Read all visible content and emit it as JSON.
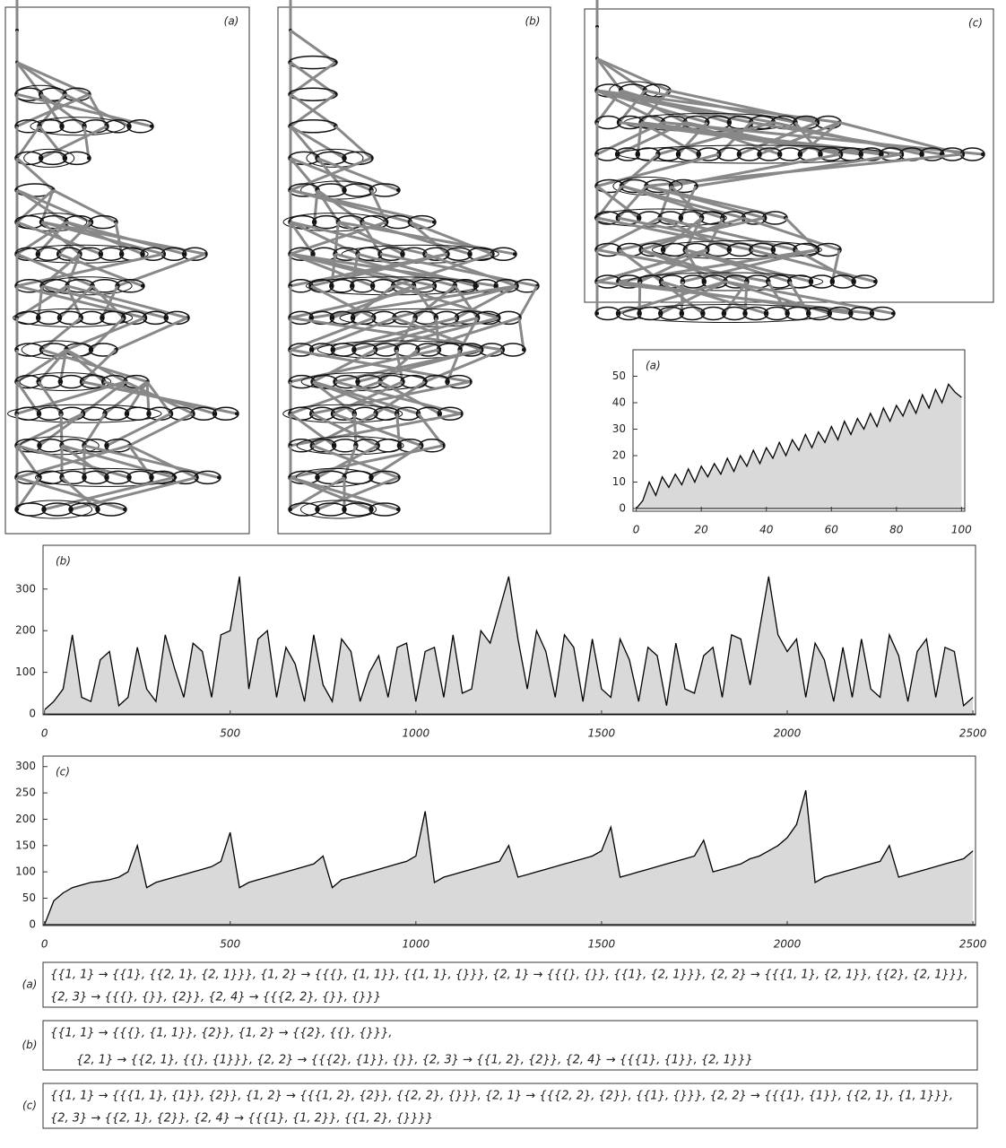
{
  "diagrams": [
    "(a)",
    "(b)",
    "(c)"
  ],
  "chart_data": [
    {
      "type": "area",
      "title": "(a)",
      "x": [
        0,
        2,
        4,
        6,
        8,
        10,
        12,
        14,
        16,
        18,
        20,
        22,
        24,
        26,
        28,
        30,
        32,
        34,
        36,
        38,
        40,
        42,
        44,
        46,
        48,
        50,
        52,
        54,
        56,
        58,
        60,
        62,
        64,
        66,
        68,
        70,
        72,
        74,
        76,
        78,
        80,
        82,
        84,
        86,
        88,
        90,
        92,
        94,
        96,
        98,
        100
      ],
      "values": [
        0,
        3,
        10,
        5,
        12,
        8,
        13,
        9,
        15,
        10,
        16,
        12,
        17,
        13,
        19,
        14,
        20,
        16,
        22,
        17,
        23,
        19,
        25,
        20,
        26,
        22,
        28,
        23,
        29,
        25,
        31,
        26,
        33,
        28,
        34,
        30,
        36,
        31,
        38,
        33,
        39,
        35,
        41,
        36,
        43,
        38,
        45,
        40,
        47,
        44,
        42
      ],
      "xlim": [
        -1,
        101
      ],
      "ylim": [
        -1,
        60
      ],
      "xticks": [
        0,
        20,
        40,
        60,
        80,
        100
      ],
      "yticks": [
        0,
        10,
        20,
        30,
        40,
        50
      ],
      "color": "#d9d9d9"
    },
    {
      "type": "area",
      "title": "(b)",
      "x": [
        0,
        25,
        50,
        75,
        100,
        125,
        150,
        175,
        200,
        225,
        250,
        275,
        300,
        325,
        350,
        375,
        400,
        425,
        450,
        475,
        500,
        525,
        550,
        575,
        600,
        625,
        650,
        675,
        700,
        725,
        750,
        775,
        800,
        825,
        850,
        875,
        900,
        925,
        950,
        975,
        1000,
        1025,
        1050,
        1075,
        1100,
        1125,
        1150,
        1175,
        1200,
        1225,
        1250,
        1275,
        1300,
        1325,
        1350,
        1375,
        1400,
        1425,
        1450,
        1475,
        1500,
        1525,
        1550,
        1575,
        1600,
        1625,
        1650,
        1675,
        1700,
        1725,
        1750,
        1775,
        1800,
        1825,
        1850,
        1875,
        1900,
        1925,
        1950,
        1975,
        2000,
        2025,
        2050,
        2075,
        2100,
        2125,
        2150,
        2175,
        2200,
        2225,
        2250,
        2275,
        2300,
        2325,
        2350,
        2375,
        2400,
        2425,
        2450,
        2475,
        2500
      ],
      "values": [
        10,
        30,
        60,
        190,
        40,
        30,
        130,
        150,
        20,
        40,
        160,
        60,
        30,
        190,
        110,
        40,
        170,
        150,
        40,
        190,
        200,
        330,
        60,
        180,
        200,
        40,
        160,
        120,
        30,
        190,
        70,
        30,
        180,
        150,
        30,
        100,
        140,
        40,
        160,
        170,
        30,
        150,
        160,
        40,
        190,
        50,
        60,
        200,
        170,
        250,
        330,
        180,
        60,
        200,
        150,
        40,
        190,
        160,
        30,
        180,
        60,
        40,
        180,
        130,
        30,
        160,
        140,
        20,
        170,
        60,
        50,
        140,
        160,
        40,
        190,
        180,
        70,
        200,
        330,
        190,
        150,
        180,
        40,
        170,
        130,
        30,
        160,
        40,
        180,
        60,
        40,
        190,
        140,
        30,
        150,
        180,
        40,
        160,
        150,
        20,
        40
      ],
      "xlim": [
        -4,
        2507
      ],
      "ylim": [
        -2,
        405
      ],
      "xticks": [
        0,
        500,
        1000,
        1500,
        2000,
        2500
      ],
      "yticks": [
        0,
        100,
        200,
        300
      ],
      "color": "#d9d9d9"
    },
    {
      "type": "area",
      "title": "(c)",
      "x": [
        0,
        25,
        50,
        75,
        100,
        125,
        150,
        175,
        200,
        225,
        250,
        275,
        300,
        325,
        350,
        375,
        400,
        425,
        450,
        475,
        500,
        525,
        550,
        575,
        600,
        625,
        650,
        675,
        700,
        725,
        750,
        775,
        800,
        825,
        850,
        875,
        900,
        925,
        950,
        975,
        1000,
        1025,
        1050,
        1075,
        1100,
        1125,
        1150,
        1175,
        1200,
        1225,
        1250,
        1275,
        1300,
        1325,
        1350,
        1375,
        1400,
        1425,
        1450,
        1475,
        1500,
        1525,
        1550,
        1575,
        1600,
        1625,
        1650,
        1675,
        1700,
        1725,
        1750,
        1775,
        1800,
        1825,
        1850,
        1875,
        1900,
        1925,
        1950,
        1975,
        2000,
        2025,
        2050,
        2075,
        2100,
        2125,
        2150,
        2175,
        2200,
        2225,
        2250,
        2275,
        2300,
        2325,
        2350,
        2375,
        2400,
        2425,
        2450,
        2475,
        2500
      ],
      "values": [
        0,
        45,
        60,
        70,
        75,
        80,
        82,
        85,
        90,
        100,
        150,
        70,
        80,
        85,
        90,
        95,
        100,
        105,
        110,
        120,
        175,
        70,
        80,
        85,
        90,
        95,
        100,
        105,
        110,
        115,
        130,
        70,
        85,
        90,
        95,
        100,
        105,
        110,
        115,
        120,
        130,
        215,
        80,
        90,
        95,
        100,
        105,
        110,
        115,
        120,
        150,
        90,
        95,
        100,
        105,
        110,
        115,
        120,
        125,
        130,
        140,
        185,
        90,
        95,
        100,
        105,
        110,
        115,
        120,
        125,
        130,
        160,
        100,
        105,
        110,
        115,
        125,
        130,
        140,
        150,
        165,
        190,
        255,
        80,
        90,
        95,
        100,
        105,
        110,
        115,
        120,
        150,
        90,
        95,
        100,
        105,
        110,
        115,
        120,
        125,
        140
      ],
      "xlim": [
        -4,
        2507
      ],
      "ylim": [
        -2,
        320
      ],
      "xticks": [
        0,
        500,
        1000,
        1500,
        2000,
        2500
      ],
      "yticks": [
        0,
        50,
        100,
        150,
        200,
        250,
        300
      ],
      "color": "#d9d9d9"
    }
  ],
  "rules": [
    {
      "label": "(a)",
      "lines": [
        "{{1, 1} → {{1}, {{2, 1}, {2, 1}}},  {1, 2} → {{{}, {1, 1}}, {{1, 1}, {}}},  {2, 1} → {{{}, {}}, {{1}, {2, 1}}},  {2, 2} → {{{1, 1}, {2, 1}}, {{2}, {2, 1}}},",
        "{2, 3} → {{{}, {}}, {2}},  {2, 4} → {{{2, 2}, {}}, {}}}"
      ]
    },
    {
      "label": "(b)",
      "lines": [
        "{{1, 1} → {{{}, {1, 1}}, {2}},  {1, 2} → {{2}, {{}, {}}},",
        "{2, 1} → {{2, 1}, {{}, {1}}},  {2, 2} → {{{2}, {1}}, {}},  {2, 3} → {{1, 2}, {2}},  {2, 4} → {{{1}, {1}}, {2, 1}}}"
      ]
    },
    {
      "label": "(c)",
      "lines": [
        "{{1, 1} → {{{1, 1}, {1}}, {2}},  {1, 2} → {{{1, 2}, {2}}, {{2, 2}, {}}},  {2, 1} → {{{2, 2}, {2}}, {{1}, {}}},  {2, 2} → {{{1}, {1}}, {{2, 1}, {1, 1}}},",
        "{2, 3} → {{2, 1}, {2}},  {2, 4} → {{{1}, {1, 2}}, {{1, 2}, {}}}}"
      ]
    }
  ]
}
